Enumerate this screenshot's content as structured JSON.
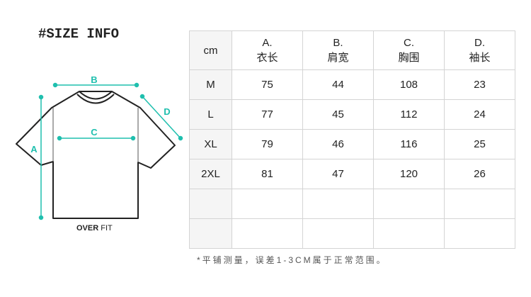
{
  "title": "#SIZE INFO",
  "diagram": {
    "labels": {
      "a": "A",
      "b": "B",
      "c": "C",
      "d": "D"
    },
    "fit_bold": "OVER",
    "fit_light": "FIT",
    "accent": "#1fbfae"
  },
  "table": {
    "unit": "cm",
    "headers": [
      {
        "code": "A.",
        "name": "衣长"
      },
      {
        "code": "B.",
        "name": "肩宽"
      },
      {
        "code": "C.",
        "name": "胸围"
      },
      {
        "code": "D.",
        "name": "袖长"
      }
    ],
    "rows": [
      [
        "M",
        "75",
        "44",
        "108",
        "23"
      ],
      [
        "L",
        "77",
        "45",
        "112",
        "24"
      ],
      [
        "XL",
        "79",
        "46",
        "116",
        "25"
      ],
      [
        "2XL",
        "81",
        "47",
        "120",
        "26"
      ],
      [
        "",
        "",
        "",
        "",
        ""
      ],
      [
        "",
        "",
        "",
        "",
        ""
      ]
    ]
  },
  "note": "*平铺测量，误差1-3CM属于正常范围。"
}
